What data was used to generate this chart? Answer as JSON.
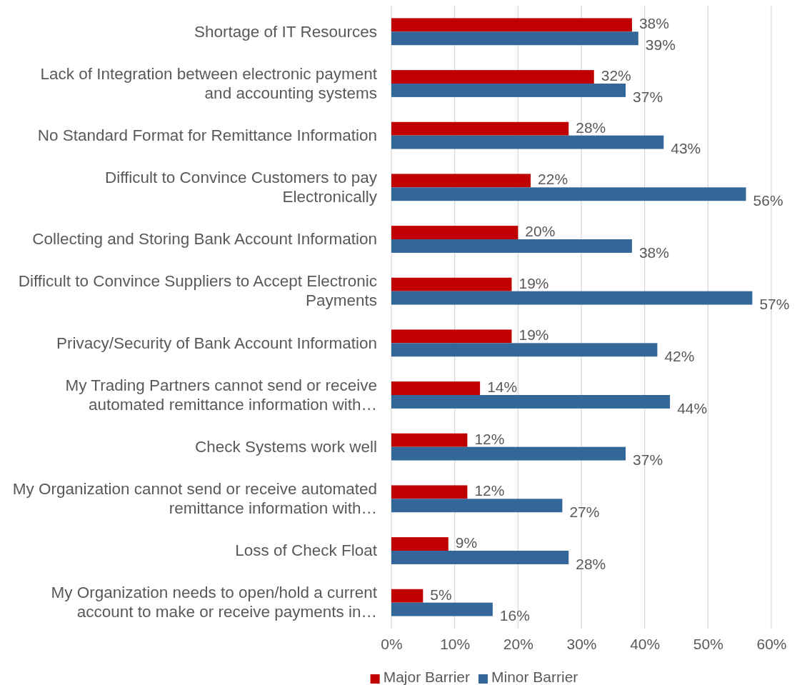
{
  "chart_data": {
    "type": "bar",
    "orientation": "horizontal",
    "categories": [
      "Shortage of IT Resources",
      "Lack of Integration between electronic payment and accounting systems",
      "No Standard Format for Remittance Information",
      "Difficult to Convince Customers to pay Electronically",
      "Collecting and Storing Bank Account Information",
      "Difficult to Convince Suppliers to Accept Electronic Payments",
      "Privacy/Security of Bank Account Information",
      "My Trading Partners cannot send or receive automated remittance information with…",
      "Check Systems work well",
      "My Organization cannot send or receive automated remittance information with…",
      "Loss of Check Float",
      "My Organization needs to open/hold a current account to make or receive payments in…"
    ],
    "series": [
      {
        "name": "Major Barrier",
        "color": "#c00000",
        "values": [
          38,
          32,
          28,
          22,
          20,
          19,
          19,
          14,
          12,
          12,
          9,
          5
        ],
        "value_labels": [
          "38%",
          "32%",
          "28%",
          "22%",
          "20%",
          "19%",
          "19%",
          "14%",
          "12%",
          "12%",
          "9%",
          "5%"
        ]
      },
      {
        "name": "Minor Barrier",
        "color": "#336699",
        "values": [
          39,
          37,
          43,
          56,
          38,
          57,
          42,
          44,
          37,
          27,
          28,
          16
        ],
        "value_labels": [
          "39%",
          "37%",
          "43%",
          "56%",
          "38%",
          "57%",
          "42%",
          "44%",
          "37%",
          "27%",
          "28%",
          "16%"
        ]
      }
    ],
    "xlim": [
      0,
      60
    ],
    "xticks": [
      {
        "value": 0,
        "label": "0%"
      },
      {
        "value": 10,
        "label": "10%"
      },
      {
        "value": 20,
        "label": "20%"
      },
      {
        "value": 30,
        "label": "30%"
      },
      {
        "value": 40,
        "label": "40%"
      },
      {
        "value": 50,
        "label": "50%"
      },
      {
        "value": 60,
        "label": "60%"
      }
    ],
    "grid": "x",
    "legend": "bottom"
  }
}
